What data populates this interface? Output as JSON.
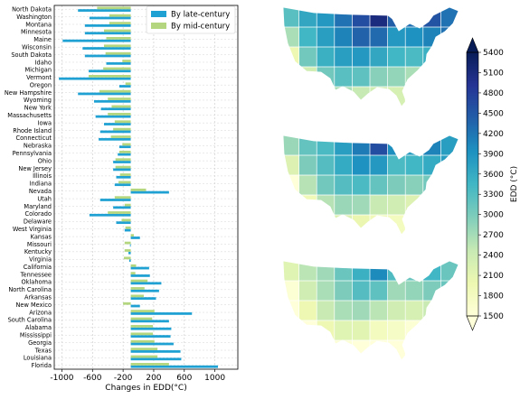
{
  "chart_data": [
    {
      "type": "bar",
      "orientation": "horizontal",
      "xlabel": "Changes in EDD(°C)",
      "xlim": [
        -1100,
        1300
      ],
      "xticks": [
        -1000,
        -600,
        -200,
        200,
        600,
        1000
      ],
      "xtick_labels": [
        "-1000",
        "-600",
        "-200",
        "200",
        "600",
        "1000"
      ],
      "baseline": -100,
      "grid": true,
      "legend_position": "top-right",
      "categories": [
        "North Dakota",
        "Washington",
        "Montana",
        "Minnesota",
        "Maine",
        "Wisconsin",
        "South Dakota",
        "Idaho",
        "Michigan",
        "Vermont",
        "Oregon",
        "New Hampshire",
        "Wyoming",
        "New York",
        "Massachusetts",
        "Iowa",
        "Rhode Island",
        "Connecticut",
        "Nebraska",
        "Pennsylvania",
        "Ohio",
        "New Jersey",
        "Illinois",
        "Indiana",
        "Nevada",
        "Utah",
        "Maryland",
        "Colorado",
        "Delaware",
        "West Virginia",
        "Kansas",
        "Missouri",
        "Kentucky",
        "Virginia",
        "California",
        "Tennessee",
        "Oklahoma",
        "North Carolina",
        "Arkansas",
        "New Mexico",
        "Arizona",
        "South Carolina",
        "Alabama",
        "Mississippi",
        "Georgia",
        "Texas",
        "Louisiana",
        "Florida"
      ],
      "series": [
        {
          "name": "By late-century",
          "color": "#1fa1d3",
          "values": [
            -790,
            -640,
            -700,
            -700,
            -990,
            -730,
            -700,
            -420,
            -650,
            -1040,
            -250,
            -790,
            -580,
            -490,
            -560,
            -450,
            -500,
            -520,
            -250,
            -270,
            -330,
            -330,
            -290,
            -310,
            400,
            -500,
            -330,
            -640,
            -290,
            -180,
            20,
            -110,
            -130,
            -120,
            140,
            150,
            300,
            270,
            230,
            20,
            700,
            400,
            430,
            420,
            460,
            550,
            560,
            1040
          ]
        },
        {
          "name": "By mid-century",
          "color": "#b3d67e",
          "values": [
            -540,
            -380,
            -380,
            -450,
            -420,
            -450,
            -430,
            -210,
            -460,
            -650,
            -170,
            -510,
            -400,
            -350,
            -400,
            -310,
            -330,
            -360,
            -210,
            -250,
            -300,
            -300,
            -240,
            -260,
            100,
            -310,
            -180,
            -400,
            -220,
            -170,
            -60,
            -180,
            -180,
            -190,
            -30,
            -40,
            120,
            80,
            70,
            -200,
            210,
            180,
            190,
            190,
            210,
            250,
            250,
            400
          ]
        }
      ]
    },
    {
      "type": "heatmap",
      "subtype": "choropleth-map",
      "maps": 3,
      "colorbar": {
        "label": "EDD (°C)",
        "ticks": [
          1500,
          1800,
          2100,
          2400,
          2700,
          3000,
          3300,
          3600,
          3900,
          4200,
          4500,
          4800,
          5100,
          5400
        ],
        "range": [
          1500,
          5400
        ],
        "colors": [
          "#ffffd9",
          "#edf8b1",
          "#c7e9b4",
          "#7fcdbb",
          "#41b6c4",
          "#1d91c0",
          "#225ea8",
          "#253494",
          "#081d58"
        ]
      }
    }
  ]
}
